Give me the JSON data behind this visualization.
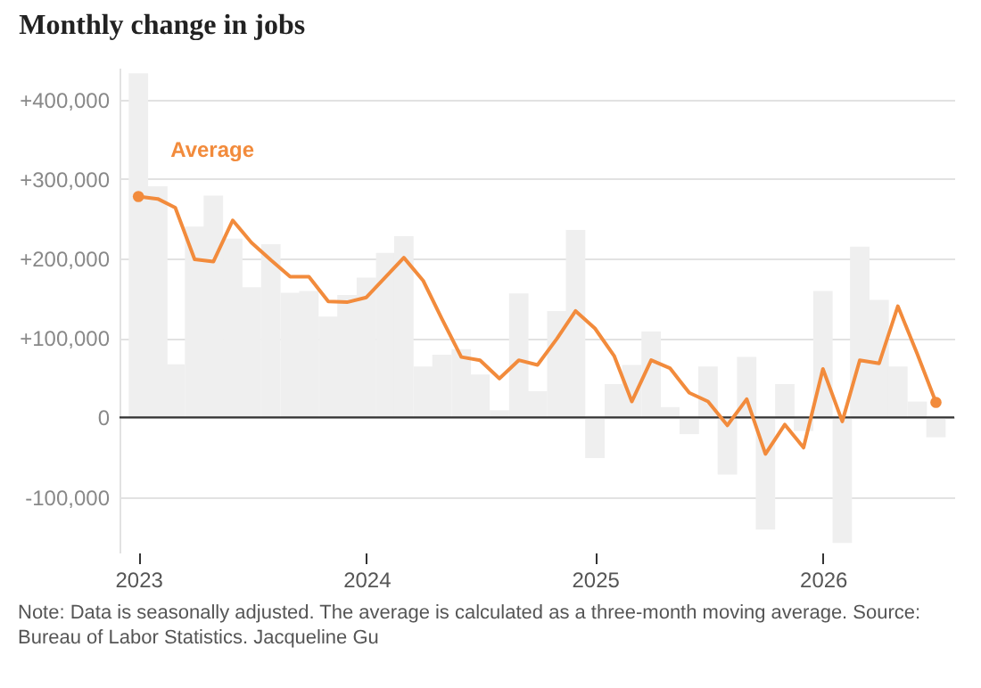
{
  "chart_data": {
    "type": "bar",
    "title": "Monthly change in jobs",
    "x": [
      "2023-01",
      "2023-02",
      "2023-03",
      "2023-04",
      "2023-05",
      "2023-06",
      "2023-07",
      "2023-08",
      "2023-09",
      "2023-10",
      "2023-11",
      "2023-12",
      "2024-01",
      "2024-02",
      "2024-03",
      "2024-04",
      "2024-05",
      "2024-06",
      "2024-07",
      "2024-08",
      "2024-09",
      "2024-10",
      "2024-11",
      "2024-12",
      "2025-01",
      "2025-02",
      "2025-03",
      "2025-04",
      "2025-05",
      "2025-06",
      "2025-07",
      "2025-08",
      "2025-09",
      "2025-10",
      "2025-11",
      "2025-12",
      "2026-01",
      "2026-02",
      "2026-03",
      "2026-04",
      "2026-05",
      "2026-06",
      "2026-07"
    ],
    "series": [
      {
        "color": "#efefef",
        "values": [
          433000,
          291000,
          67000,
          240000,
          279000,
          225000,
          164000,
          218000,
          157000,
          159000,
          127000,
          154000,
          176000,
          207000,
          228000,
          64000,
          79000,
          86000,
          54000,
          9000,
          156000,
          33000,
          134000,
          236000,
          -51000,
          42000,
          66000,
          108000,
          13000,
          -21000,
          64000,
          -72000,
          76000,
          -141000,
          42000,
          -17000,
          159000,
          -158000,
          215000,
          148000,
          64000,
          20000,
          -25000
        ]
      },
      {
        "type": "line",
        "name": "Average",
        "color": "#f28b3c",
        "values": [
          278000,
          275000,
          264000,
          199000,
          196000,
          248000,
          220000,
          198000,
          177000,
          177000,
          146000,
          145000,
          151000,
          177000,
          201000,
          172000,
          124000,
          76000,
          72000,
          49000,
          72000,
          66000,
          99000,
          134000,
          112000,
          77000,
          20000,
          72000,
          62000,
          31000,
          20000,
          -10000,
          23000,
          -46000,
          -9000,
          -38000,
          61000,
          -5000,
          72000,
          68000,
          140000,
          80000,
          19000
        ]
      }
    ],
    "xlim": [
      "2022-12-16",
      "2026-07-16"
    ],
    "xticks": [
      {
        "value": "2023-01",
        "label": "2023"
      },
      {
        "value": "2024-01",
        "label": "2024"
      },
      {
        "value": "2025-01",
        "label": "2025"
      },
      {
        "value": "2026-01",
        "label": "2026"
      }
    ],
    "ylim": [
      -170000,
      440000
    ],
    "yticks": [
      {
        "value": -100000,
        "label": "-100,000"
      },
      {
        "value": 0,
        "label": "0"
      },
      {
        "value": 100000,
        "label": "+100,000"
      },
      {
        "value": 200000,
        "label": "+200,000"
      },
      {
        "value": 300000,
        "label": "+300,000"
      },
      {
        "value": 400000,
        "label": "+400,000"
      }
    ],
    "grid": "y",
    "ref_lines": [
      {
        "axis": "y",
        "value": 0,
        "color": "#333333"
      }
    ],
    "annotations": [
      "Note: Data is seasonally adjusted. The average is calculated as a three-month moving average.  Source: Bureau of Labor Statistics.  Jacqueline Gu"
    ]
  }
}
